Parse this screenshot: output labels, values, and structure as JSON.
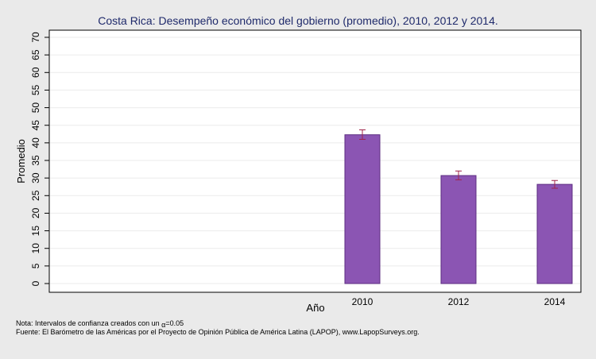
{
  "chart_data": {
    "type": "bar",
    "title": "Costa Rica: Desempeño económico del gobierno (promedio), 2010, 2012 y 2014.",
    "xlabel": "Año",
    "ylabel": "Promedio",
    "categories": [
      "2010",
      "2012",
      "2014"
    ],
    "values": [
      42.3,
      30.7,
      28.2
    ],
    "ci_low": [
      41.0,
      29.5,
      27.1
    ],
    "ci_high": [
      43.7,
      32.0,
      29.3
    ],
    "ylim": [
      0,
      70
    ],
    "yticks": [
      "0",
      "5",
      "10",
      "15",
      "20",
      "25",
      "30",
      "35",
      "40",
      "45",
      "50",
      "55",
      "60",
      "65",
      "70"
    ],
    "grid": true,
    "bar_color": "#8b55b3",
    "bar_stroke": "#5c2d82",
    "errorbar_color": "#a0244a"
  },
  "notes": {
    "line1_prefix": "Nota: Intervalos de confianza creados con un ",
    "alpha_symbol": "α",
    "line1_suffix": "=0.05",
    "line2": "Fuente: El Barómetro de las Américas por el Proyecto de Opinión Pública de América Latina (LAPOP), www.LapopSurveys.org."
  }
}
